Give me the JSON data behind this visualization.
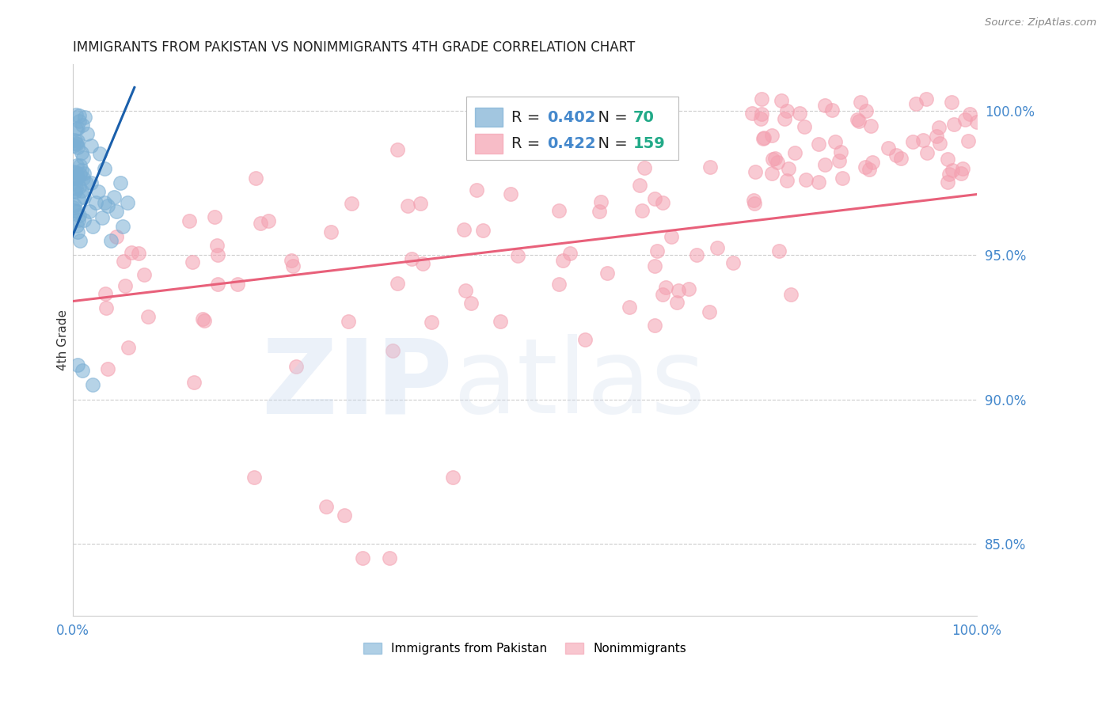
{
  "title": "IMMIGRANTS FROM PAKISTAN VS NONIMMIGRANTS 4TH GRADE CORRELATION CHART",
  "source": "Source: ZipAtlas.com",
  "ylabel": "4th Grade",
  "ytick_labels": [
    "100.0%",
    "95.0%",
    "90.0%",
    "85.0%"
  ],
  "ytick_values": [
    1.0,
    0.95,
    0.9,
    0.85
  ],
  "xlim": [
    0.0,
    1.0
  ],
  "ylim": [
    0.825,
    1.016
  ],
  "blue_R": "0.402",
  "blue_N": "70",
  "pink_R": "0.422",
  "pink_N": "159",
  "blue_color": "#7BAFD4",
  "pink_color": "#F4A0B0",
  "blue_line_color": "#1A5FAB",
  "pink_line_color": "#E8607A",
  "background_color": "#FFFFFF",
  "grid_color": "#CCCCCC",
  "title_color": "#222222",
  "axis_color": "#4488CC",
  "legend_text_color": "#222222",
  "legend_val_color": "#4488CC",
  "legend_n_color": "#22AA88",
  "source_color": "#888888"
}
